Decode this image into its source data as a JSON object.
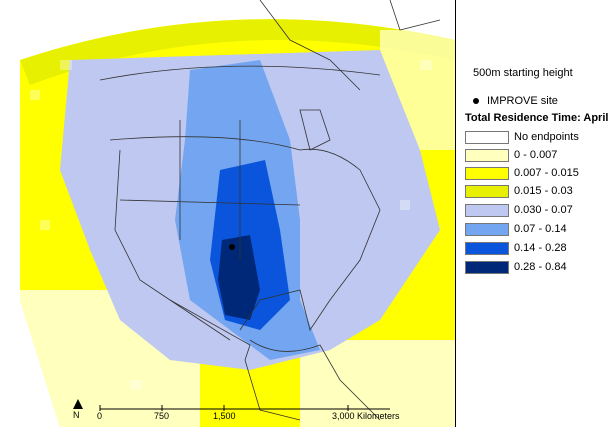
{
  "legend": {
    "height_label": "500m starting height",
    "site_label": "IMPROVE site",
    "title": "Total Residence Time: April",
    "items": [
      {
        "label": "No endpoints",
        "color": "#ffffff"
      },
      {
        "label": "0 - 0.007",
        "color": "#ffffbe"
      },
      {
        "label": "0.007 - 0.015",
        "color": "#ffff00"
      },
      {
        "label": "0.015 - 0.03",
        "color": "#e6f000"
      },
      {
        "label": "0.030 - 0.07",
        "color": "#bec8f0"
      },
      {
        "label": "0.07 - 0.14",
        "color": "#73a5f0"
      },
      {
        "label": "0.14 - 0.28",
        "color": "#0a55dc"
      },
      {
        "label": "0.28 - 0.84",
        "color": "#002878"
      }
    ]
  },
  "scale": {
    "north": "N",
    "ticks": [
      "0",
      "750",
      "1,500",
      "3,000 Kilometers"
    ]
  }
}
